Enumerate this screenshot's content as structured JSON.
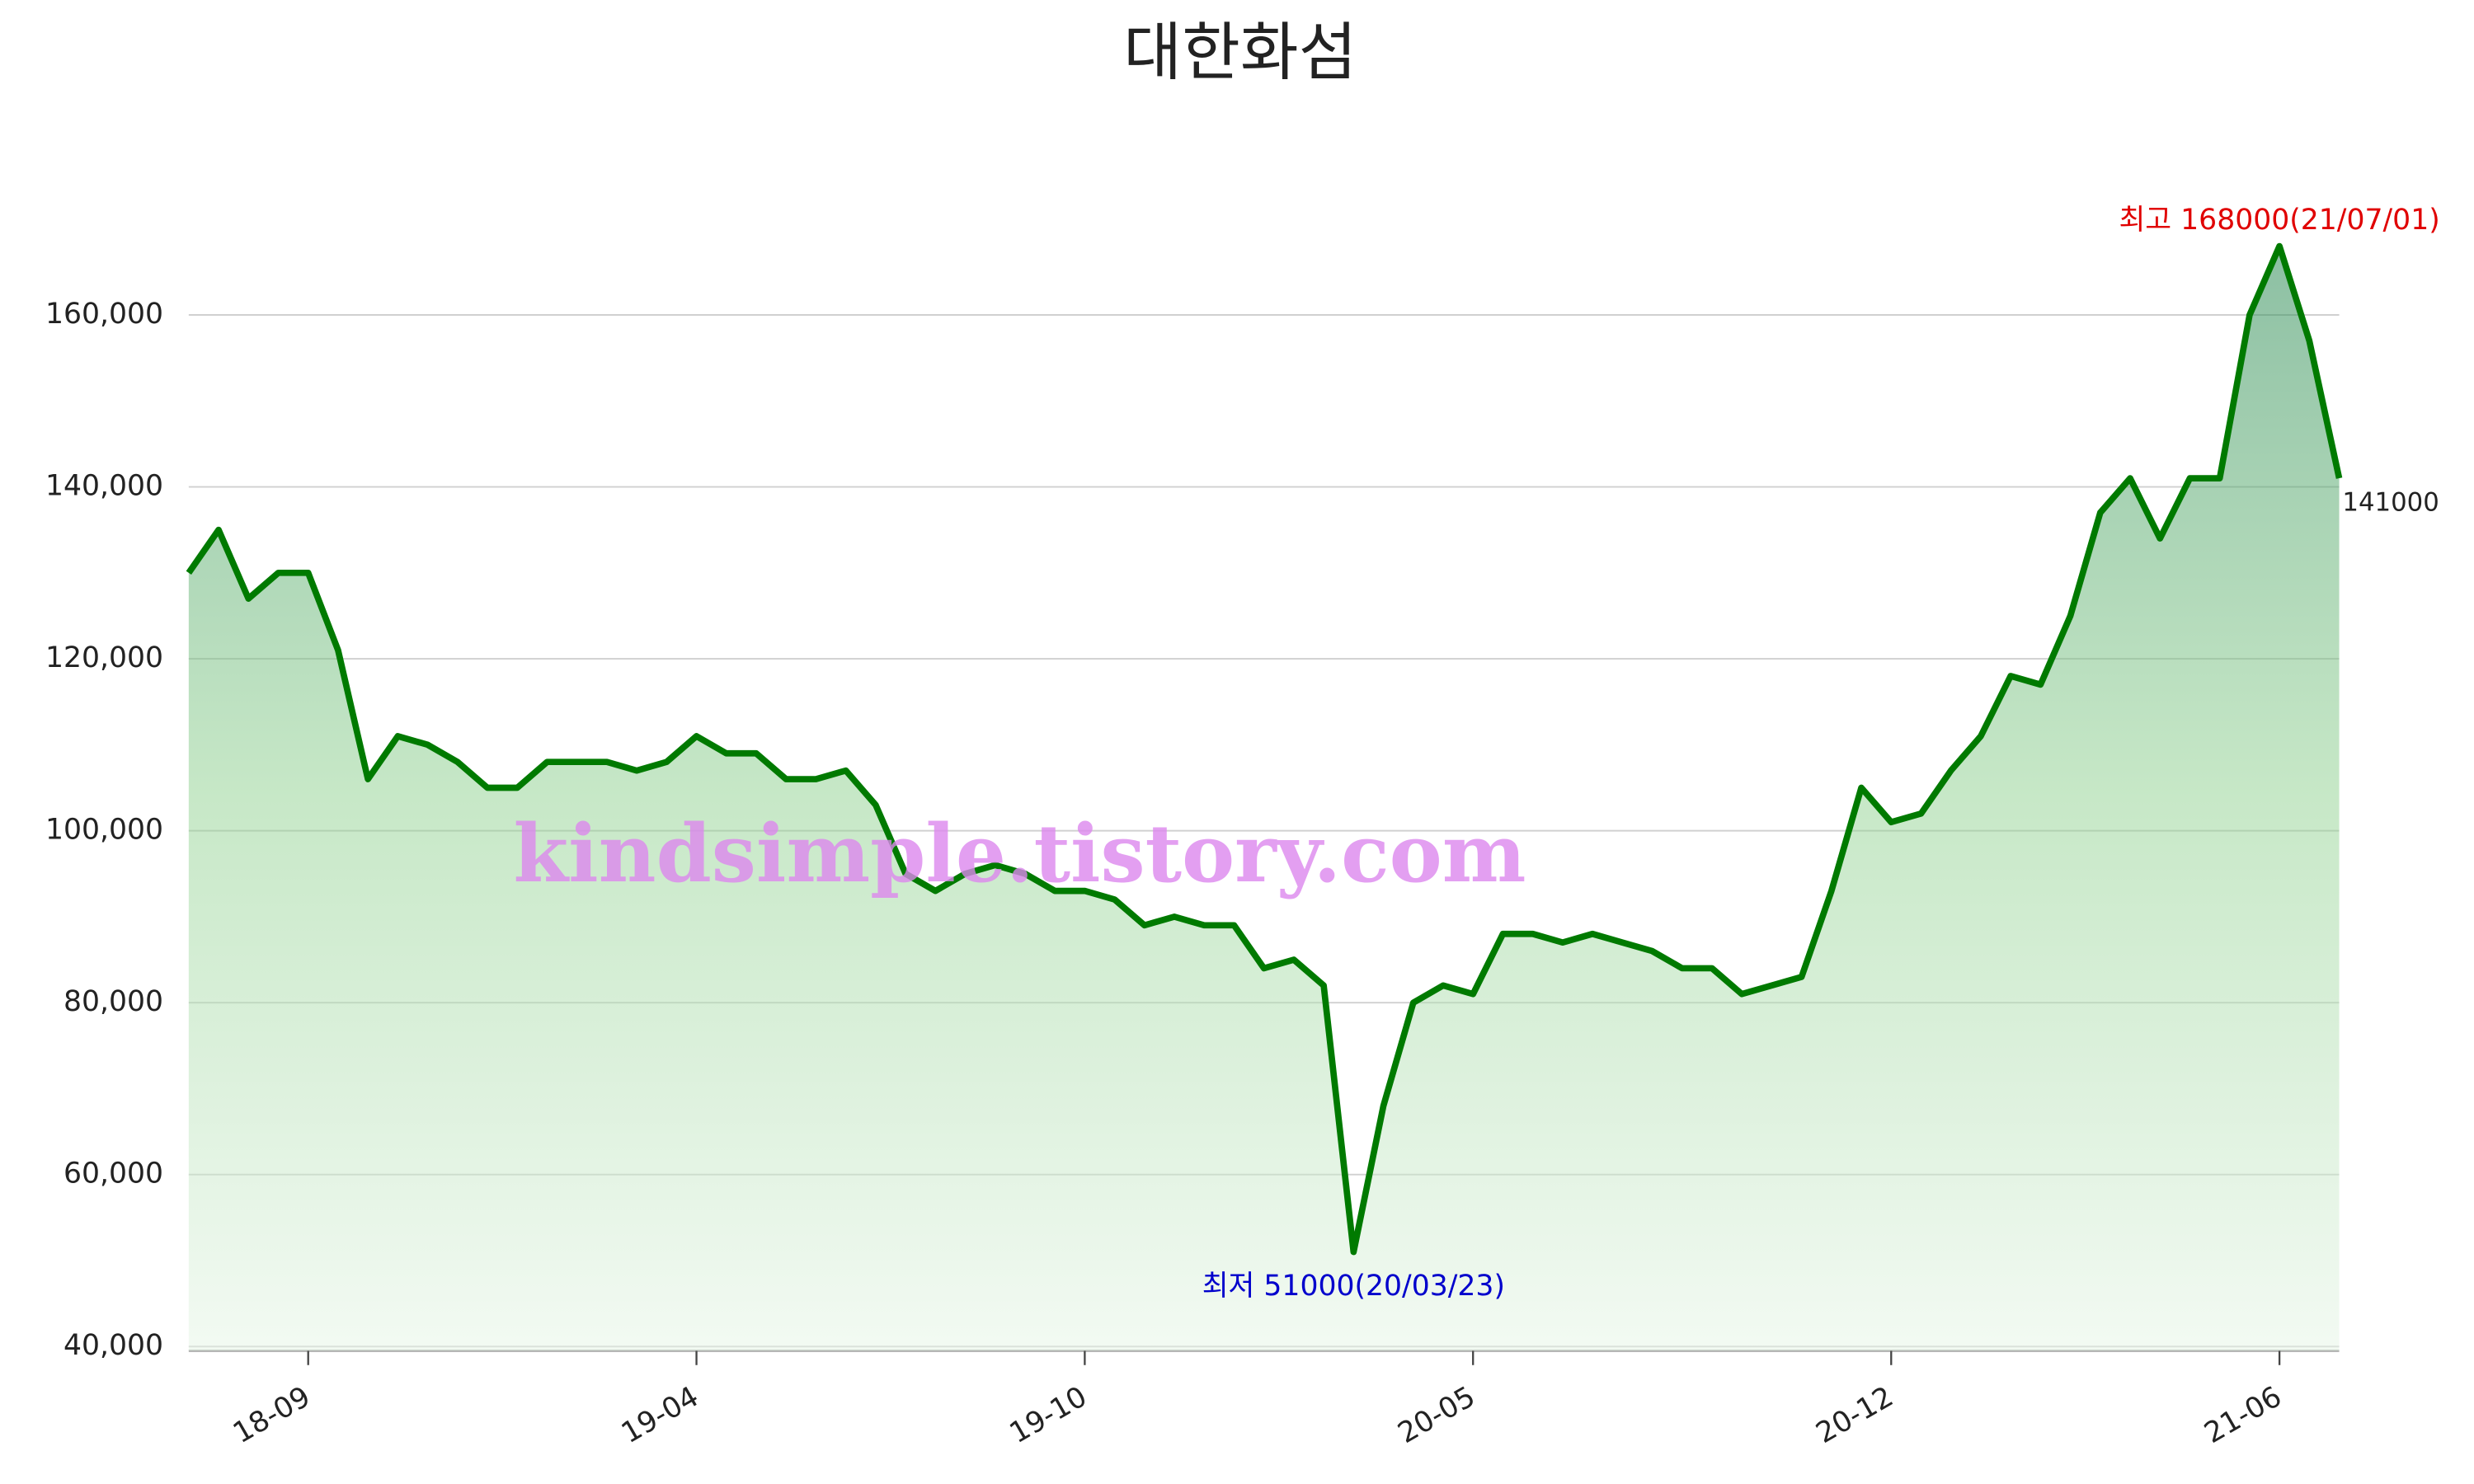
{
  "chart_data": {
    "type": "line",
    "title": "대한화섬",
    "categories": [
      null,
      null,
      null,
      null,
      "18-09",
      null,
      null,
      null,
      null,
      null,
      null,
      null,
      null,
      null,
      null,
      null,
      null,
      "19-04",
      null,
      null,
      null,
      null,
      null,
      null,
      null,
      null,
      null,
      null,
      null,
      null,
      "19-10",
      null,
      null,
      null,
      null,
      null,
      null,
      null,
      null,
      null,
      null,
      null,
      null,
      "20-05",
      null,
      null,
      null,
      null,
      null,
      null,
      null,
      null,
      null,
      null,
      null,
      null,
      null,
      "20-12",
      null,
      null,
      null,
      null,
      null,
      null,
      null,
      null,
      null,
      null,
      null,
      null,
      "21-06",
      null,
      null
    ],
    "series": [
      {
        "name": "대한화섬",
        "color": "#007a00",
        "values": [
          130000,
          135000,
          127000,
          130000,
          130000,
          121000,
          106000,
          111000,
          110000,
          108000,
          105000,
          105000,
          108000,
          108000,
          108000,
          107000,
          108000,
          111000,
          109000,
          109000,
          106000,
          106000,
          107000,
          103000,
          95000,
          93000,
          95000,
          96000,
          95000,
          93000,
          93000,
          92000,
          89000,
          90000,
          89000,
          89000,
          84000,
          85000,
          82000,
          51000,
          68000,
          80000,
          82000,
          81000,
          88000,
          88000,
          87000,
          88000,
          87000,
          86000,
          84000,
          84000,
          81000,
          82000,
          83000,
          93000,
          105000,
          101000,
          102000,
          107000,
          111000,
          118000,
          117000,
          125000,
          137000,
          141000,
          134000,
          141000,
          141000,
          160000,
          168000,
          157000,
          141000
        ]
      }
    ],
    "ylim": [
      39500,
      171000
    ],
    "yticks": [
      {
        "value": 40000,
        "label": "40,000"
      },
      {
        "value": 60000,
        "label": "60,000"
      },
      {
        "value": 80000,
        "label": "80,000"
      },
      {
        "value": 100000,
        "label": "100,000"
      },
      {
        "value": 120000,
        "label": "120,000"
      },
      {
        "value": 140000,
        "label": "140,000"
      },
      {
        "value": 160000,
        "label": "160,000"
      }
    ],
    "grid": true,
    "annotations": {
      "high": "최고 168000(21/07/01)",
      "low": "최저 51000(20/03/23)",
      "last": "141000",
      "watermark": "kindsimple.tistory.com"
    }
  }
}
